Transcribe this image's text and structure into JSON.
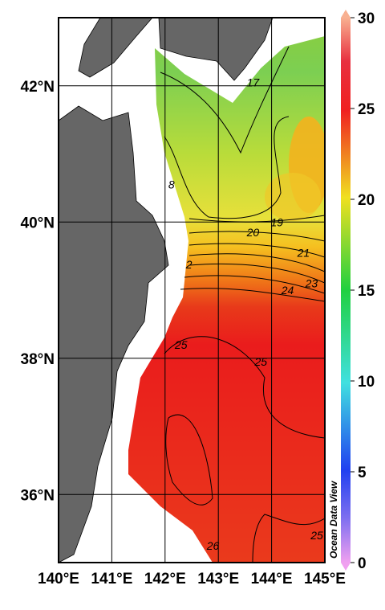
{
  "map": {
    "xlim": [
      140,
      145
    ],
    "ylim": [
      35,
      43
    ],
    "xticks": [
      {
        "value": 140,
        "label": "140°E"
      },
      {
        "value": 141,
        "label": "141°E"
      },
      {
        "value": 142,
        "label": "142°E"
      },
      {
        "value": 143,
        "label": "143°E"
      },
      {
        "value": 144,
        "label": "144°E"
      },
      {
        "value": 145,
        "label": "145°E"
      }
    ],
    "yticks": [
      {
        "value": 36,
        "label": "36°N"
      },
      {
        "value": 38,
        "label": "38°N"
      },
      {
        "value": 40,
        "label": "40°N"
      },
      {
        "value": 42,
        "label": "42°N"
      }
    ],
    "colorbar": {
      "lim": [
        0,
        30
      ],
      "ticks": [
        0,
        5,
        10,
        15,
        20,
        25,
        30
      ]
    },
    "contour_labels": [
      {
        "label": "17",
        "lon": 143.65,
        "lat": 42.05
      },
      {
        "label": "8",
        "lon": 142.12,
        "lat": 40.55
      },
      {
        "label": "19",
        "lon": 144.1,
        "lat": 40.0
      },
      {
        "label": "20",
        "lon": 143.65,
        "lat": 39.85
      },
      {
        "label": "21",
        "lon": 144.6,
        "lat": 39.55
      },
      {
        "label": "2",
        "lon": 142.45,
        "lat": 39.38
      },
      {
        "label": "23",
        "lon": 144.75,
        "lat": 39.1
      },
      {
        "label": "24",
        "lon": 144.3,
        "lat": 39.0
      },
      {
        "label": "25",
        "lon": 142.3,
        "lat": 38.2
      },
      {
        "label": "25",
        "lon": 143.8,
        "lat": 37.95
      },
      {
        "label": "26",
        "lon": 142.9,
        "lat": 35.25
      },
      {
        "label": "25",
        "lon": 144.85,
        "lat": 35.4
      }
    ],
    "brand": "Ocean Data View"
  }
}
